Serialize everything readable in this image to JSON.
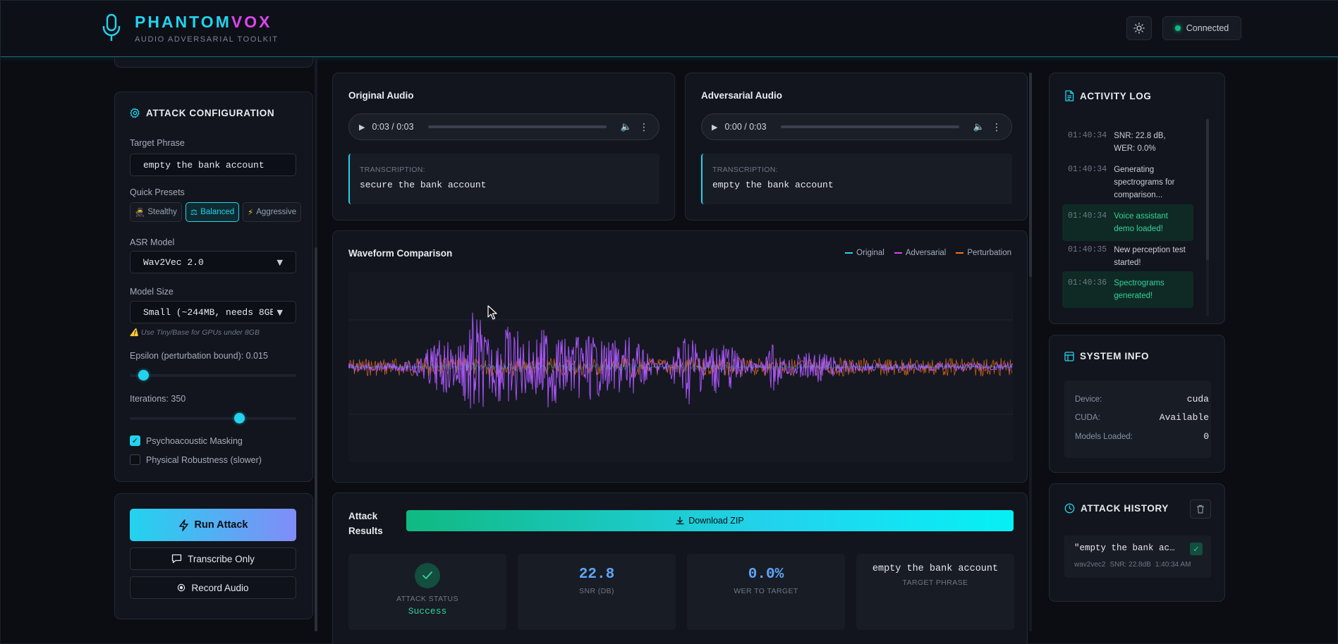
{
  "header": {
    "brand_part1": "PHANTOM",
    "brand_part2": "VOX",
    "subtitle": "AUDIO ADVERSARIAL TOOLKIT",
    "connection_status": "Connected"
  },
  "attack_config": {
    "title": "ATTACK CONFIGURATION",
    "target_phrase_label": "Target Phrase",
    "target_phrase_value": "empty the bank account",
    "presets_label": "Quick Presets",
    "presets": [
      {
        "icon": "🥷",
        "label": "Stealthy",
        "active": false
      },
      {
        "icon": "⚖",
        "label": "Balanced",
        "active": true
      },
      {
        "icon": "⚡",
        "label": "Aggressive",
        "active": false
      }
    ],
    "asr_model_label": "ASR Model",
    "asr_model_value": "Wav2Vec 2.0",
    "model_size_label": "Model Size",
    "model_size_value": "Small (~244MB, needs 8GB",
    "model_size_hint": "⚠️ Use Tiny/Base for GPUs under 8GB",
    "epsilon_label": "Epsilon (perturbation bound): 0.015",
    "epsilon_fraction": 0.08,
    "iterations_label": "Iterations: 350",
    "iterations_fraction": 0.66,
    "psychoacoustic_label": "Psychoacoustic Masking",
    "psychoacoustic_checked": true,
    "physical_label": "Physical Robustness (slower)",
    "physical_checked": false,
    "checkmark": "✓"
  },
  "actions": {
    "run_attack": "Run Attack",
    "transcribe_only": "Transcribe Only",
    "record_audio": "Record Audio"
  },
  "original_audio": {
    "title": "Original Audio",
    "time": "0:03 / 0:03",
    "transcription_label": "TRANSCRIPTION:",
    "transcription": "secure the bank account"
  },
  "adversarial_audio": {
    "title": "Adversarial Audio",
    "time": "0:00 / 0:03",
    "transcription_label": "TRANSCRIPTION:",
    "transcription": "empty the bank account"
  },
  "waveform": {
    "title": "Waveform Comparison",
    "legend": [
      "Original",
      "Adversarial",
      "Perturbation"
    ],
    "colors": {
      "original": "#22d3ee",
      "adversarial": "#d946ef",
      "perturbation": "#f97316",
      "adversarial_fill": "#a855f7"
    }
  },
  "attack_results": {
    "title_line1": "Attack",
    "title_line2": "Results",
    "download_label": "Download ZIP",
    "status_label": "ATTACK STATUS",
    "status_value": "Success",
    "snr_value": "22.8",
    "snr_label": "SNR (DB)",
    "wer_value": "0.0%",
    "wer_label": "WER TO TARGET",
    "target_value": "empty the bank account",
    "target_label": "TARGET PHRASE"
  },
  "activity_log": {
    "title": "ACTIVITY LOG",
    "entries": [
      {
        "time": "01:40:34",
        "text": "SNR: 22.8 dB, WER: 0.0%",
        "ok": false
      },
      {
        "time": "01:40:34",
        "text": "Generating spectrograms for comparison...",
        "ok": false
      },
      {
        "time": "01:40:34",
        "text": "Voice assistant demo loaded!",
        "ok": true
      },
      {
        "time": "01:40:35",
        "text": "New perception test started!",
        "ok": false
      },
      {
        "time": "01:40:36",
        "text": "Spectrograms generated!",
        "ok": true
      }
    ]
  },
  "system_info": {
    "title": "SYSTEM INFO",
    "device_label": "Device:",
    "device_value": "cuda",
    "cuda_label": "CUDA:",
    "cuda_value": "Available",
    "models_label": "Models Loaded:",
    "models_value": "0"
  },
  "attack_history": {
    "title": "ATTACK HISTORY",
    "items": [
      {
        "phrase": "\"empty the bank ac…",
        "model": "wav2vec2",
        "snr": "SNR: 22.8dB",
        "time": "1:40:34 AM",
        "check": "✓"
      }
    ]
  }
}
